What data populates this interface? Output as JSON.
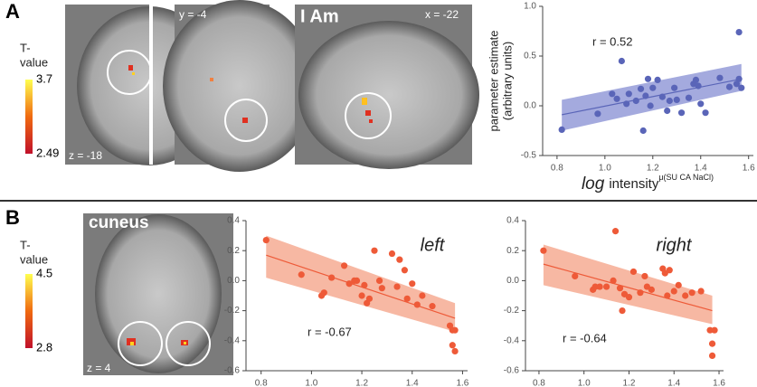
{
  "panels": {
    "A": {
      "letter": "A",
      "t_label": [
        "T-",
        "value"
      ],
      "max": "3.7",
      "min": "2.49",
      "views": [
        "z = -18",
        "y = -4",
        "x = -22"
      ],
      "region": "I Am"
    },
    "B": {
      "letter": "B",
      "t_label": [
        "T-",
        "value"
      ],
      "max": "4.5",
      "min": "2.8",
      "views": [
        "z = 4"
      ],
      "region": "cuneus"
    }
  },
  "chart_data": [
    {
      "type": "scatter",
      "annotation": "r = 0.52",
      "x_label": [
        "log",
        "intensity",
        "μ(SU CA NaCl)"
      ],
      "y_label": [
        "parameter estimate",
        "(arbitrary units)"
      ],
      "color": "#5a65b8",
      "band_color": "#7d86d0",
      "x": [
        0.82,
        0.97,
        1.03,
        1.05,
        1.07,
        1.09,
        1.1,
        1.13,
        1.15,
        1.16,
        1.17,
        1.18,
        1.19,
        1.2,
        1.22,
        1.24,
        1.26,
        1.27,
        1.29,
        1.3,
        1.32,
        1.35,
        1.37,
        1.38,
        1.39,
        1.4,
        1.42,
        1.48,
        1.52,
        1.55,
        1.56,
        1.56,
        1.57
      ],
      "values": [
        -0.24,
        -0.08,
        0.12,
        0.07,
        0.45,
        0.02,
        0.12,
        0.05,
        0.17,
        -0.25,
        0.1,
        0.27,
        0.0,
        0.18,
        0.26,
        0.09,
        -0.05,
        0.05,
        0.18,
        0.06,
        -0.07,
        0.08,
        0.22,
        0.26,
        0.2,
        0.02,
        -0.07,
        0.28,
        0.19,
        0.22,
        0.74,
        0.27,
        0.18
      ],
      "fit": {
        "x": [
          0.82,
          1.57
        ],
        "values": [
          -0.09,
          0.27
        ],
        "lower": [
          -0.25,
          0.15
        ],
        "upper": [
          0.06,
          0.42
        ]
      },
      "xlim": [
        0.74,
        1.62
      ],
      "ylim": [
        -0.5,
        1.0
      ],
      "xticks": [
        0.8,
        {
          "value": 1.0,
          "label": "1.0"
        },
        1.2,
        1.4,
        1.6
      ],
      "yticks": [
        -0.5,
        {
          "value": 0,
          "label": "0.0"
        },
        0.5,
        {
          "value": 1.0,
          "label": "1.0"
        }
      ]
    },
    {
      "type": "scatter",
      "title": "left",
      "annotation": "r = -0.67",
      "color": "#ee5a38",
      "band_color": "#f39a7c",
      "x": [
        0.82,
        0.96,
        1.04,
        1.05,
        1.08,
        1.13,
        1.15,
        1.17,
        1.18,
        1.2,
        1.21,
        1.22,
        1.23,
        1.25,
        1.27,
        1.28,
        1.32,
        1.34,
        1.35,
        1.37,
        1.38,
        1.4,
        1.42,
        1.44,
        1.48,
        1.55,
        1.56,
        1.56,
        1.57,
        1.57
      ],
      "values": [
        0.27,
        0.04,
        -0.1,
        -0.08,
        0.02,
        0.1,
        -0.02,
        0.0,
        0.0,
        -0.1,
        -0.03,
        -0.15,
        -0.12,
        0.2,
        0.0,
        -0.05,
        0.18,
        -0.04,
        0.14,
        0.07,
        -0.12,
        -0.02,
        -0.16,
        -0.1,
        -0.17,
        -0.3,
        -0.33,
        -0.43,
        -0.47,
        -0.33
      ],
      "fit": {
        "x": [
          0.82,
          1.57
        ],
        "values": [
          0.17,
          -0.25
        ],
        "lower": [
          0.02,
          -0.34
        ],
        "upper": [
          0.3,
          -0.15
        ]
      },
      "xlim": [
        0.74,
        1.62
      ],
      "ylim": [
        -0.6,
        0.4
      ],
      "xticks": [
        0.8,
        {
          "value": 1.0,
          "label": "1.0"
        },
        1.2,
        1.4,
        1.6
      ],
      "yticks": [
        -0.6,
        -0.4,
        -0.2,
        {
          "value": 0,
          "label": "0.0"
        },
        0.2,
        0.4
      ]
    },
    {
      "type": "scatter",
      "title": "right",
      "annotation": "r = -0.64",
      "color": "#ee5a38",
      "band_color": "#f39a7c",
      "x": [
        0.82,
        0.96,
        1.04,
        1.05,
        1.07,
        1.1,
        1.13,
        1.14,
        1.16,
        1.17,
        1.18,
        1.2,
        1.22,
        1.25,
        1.27,
        1.28,
        1.3,
        1.35,
        1.36,
        1.37,
        1.38,
        1.4,
        1.42,
        1.45,
        1.48,
        1.52,
        1.56,
        1.57,
        1.57,
        1.58
      ],
      "values": [
        0.2,
        0.03,
        -0.06,
        -0.04,
        -0.04,
        -0.04,
        0.0,
        0.33,
        -0.05,
        -0.2,
        -0.09,
        -0.11,
        0.06,
        -0.08,
        0.03,
        -0.04,
        -0.06,
        0.08,
        0.05,
        -0.1,
        0.07,
        -0.07,
        -0.03,
        -0.1,
        -0.08,
        -0.07,
        -0.33,
        -0.42,
        -0.5,
        -0.33
      ],
      "fit": {
        "x": [
          0.82,
          1.57
        ],
        "values": [
          0.11,
          -0.2
        ],
        "lower": [
          -0.03,
          -0.29
        ],
        "upper": [
          0.24,
          -0.1
        ]
      },
      "xlim": [
        0.74,
        1.62
      ],
      "ylim": [
        -0.6,
        0.4
      ],
      "xticks": [
        0.8,
        {
          "value": 1.0,
          "label": "1.0"
        },
        1.2,
        1.4,
        1.6
      ],
      "yticks": [
        -0.6,
        -0.4,
        -0.2,
        {
          "value": 0,
          "label": "0.0"
        },
        0.2,
        0.4
      ]
    }
  ]
}
